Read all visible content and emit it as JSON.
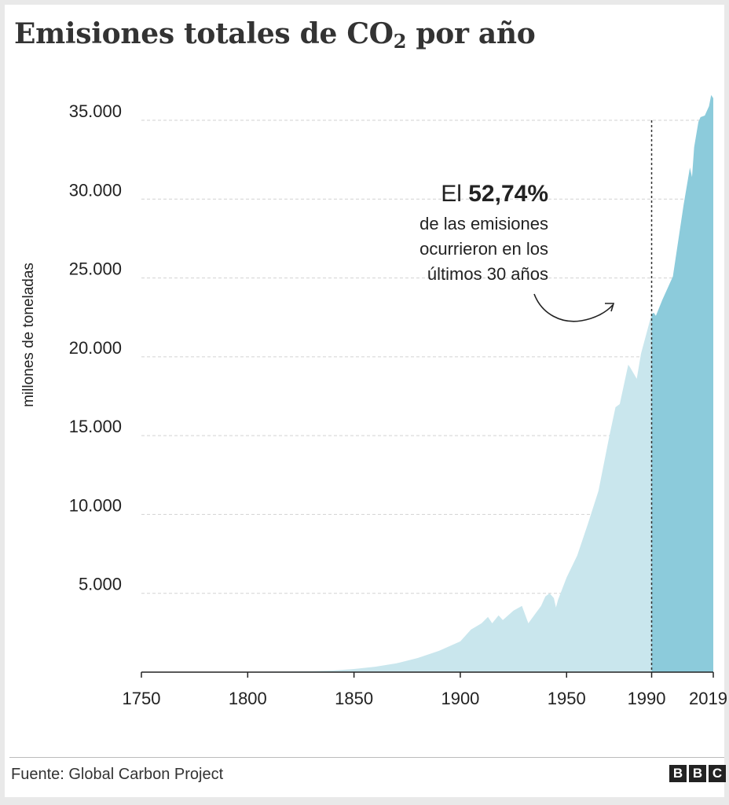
{
  "title": {
    "main": "Emisiones totales de CO",
    "sub": "2",
    "tail": " por año"
  },
  "source": "Fuente: Global Carbon Project",
  "logo_text": "BBC",
  "colors": {
    "area_before": "#c9e6ed",
    "area_after": "#8ccbdb",
    "grid": "#d2d2d2",
    "text": "#222222"
  },
  "annotation": {
    "prefix": "El ",
    "value": "52,74%",
    "lines": [
      "de las emisiones",
      "ocurrieron en los",
      "últimos 30 años"
    ]
  },
  "chart_data": {
    "type": "area",
    "title": "Emisiones totales de CO2 por año",
    "ylabel": "millones de toneladas",
    "xlabel": "",
    "xlim": [
      1750,
      2019
    ],
    "ylim": [
      0,
      35000
    ],
    "x_ticks": [
      1750,
      1800,
      1850,
      1900,
      1950,
      1990,
      2019
    ],
    "y_ticks": [
      5000,
      10000,
      15000,
      20000,
      25000,
      30000,
      35000
    ],
    "y_tick_labels": [
      "5.000",
      "10.000",
      "15.000",
      "20.000",
      "25.000",
      "30.000",
      "35.000"
    ],
    "grid": true,
    "highlight_from": 1990,
    "series": [
      {
        "x": [
          1750,
          1770,
          1790,
          1800,
          1820,
          1830,
          1840,
          1850,
          1860,
          1870,
          1880,
          1890,
          1900,
          1905,
          1910,
          1913,
          1915,
          1918,
          1920,
          1925,
          1929,
          1932,
          1935,
          1938,
          1940,
          1942,
          1944,
          1945,
          1946,
          1950,
          1955,
          1960,
          1965,
          1970,
          1973,
          1975,
          1979,
          1980,
          1983,
          1985,
          1990,
          1991,
          1992,
          1995,
          2000,
          2003,
          2005,
          2008,
          2009,
          2010,
          2012,
          2013,
          2015,
          2017,
          2018,
          2019
        ],
        "y": [
          9,
          15,
          24,
          28,
          45,
          65,
          100,
          200,
          340,
          560,
          900,
          1350,
          1950,
          2700,
          3100,
          3500,
          3100,
          3600,
          3300,
          3900,
          4200,
          3100,
          3650,
          4200,
          4800,
          5000,
          4700,
          4100,
          4600,
          6000,
          7400,
          9400,
          11500,
          14900,
          16800,
          17000,
          19500,
          19300,
          18600,
          20200,
          22700,
          22800,
          22600,
          23600,
          25100,
          27800,
          29600,
          32000,
          31400,
          33300,
          34900,
          35200,
          35300,
          35900,
          36600,
          36400
        ]
      }
    ]
  }
}
